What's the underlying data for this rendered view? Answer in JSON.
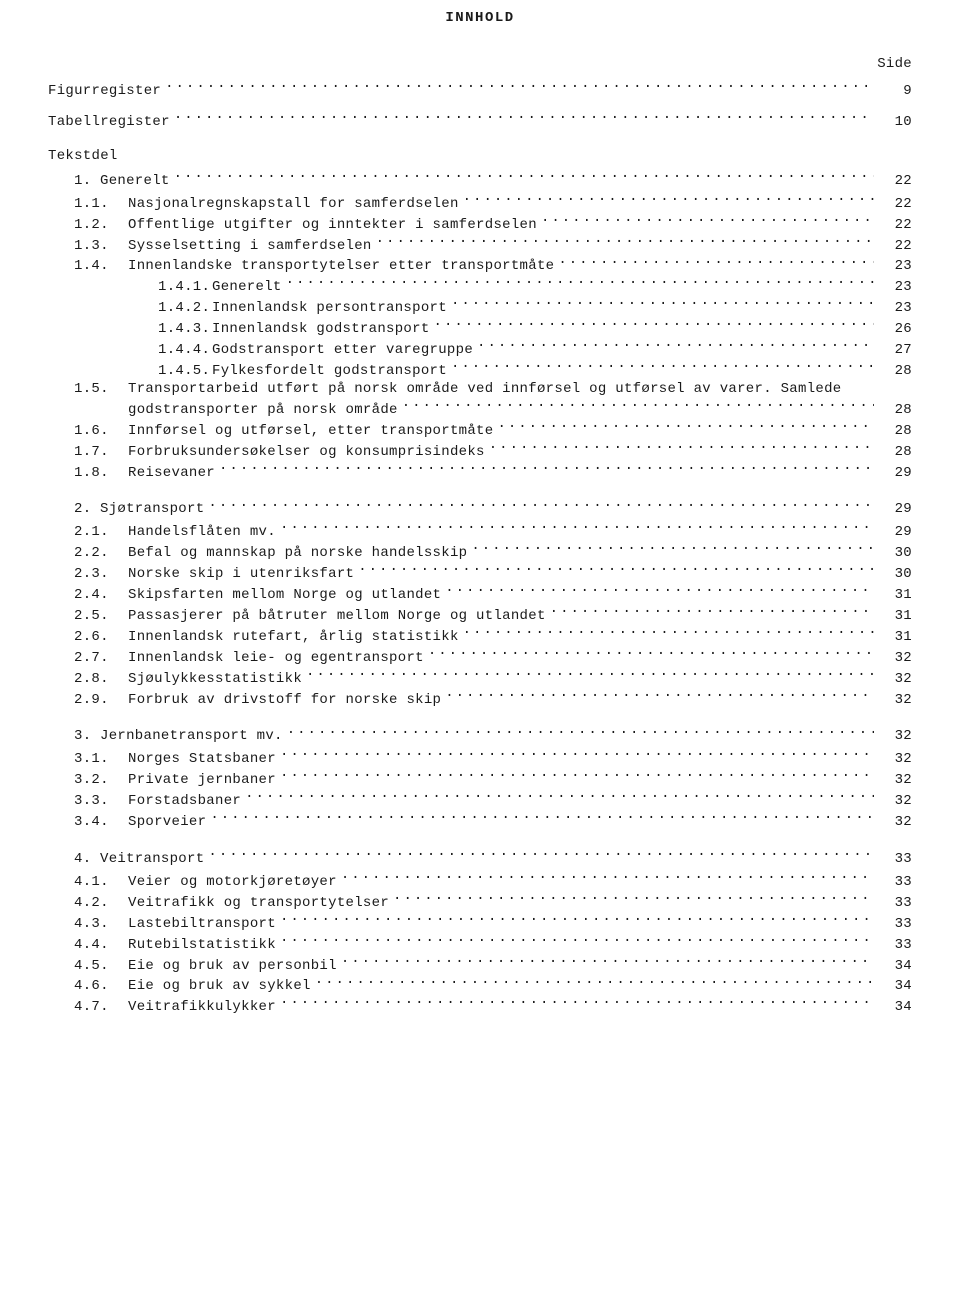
{
  "title": "INNHOLD",
  "side_label": "Side",
  "tekstdel_label": "Tekstdel",
  "registers": [
    {
      "label": "Figurregister",
      "page": "9"
    },
    {
      "label": "Tabellregister",
      "page": "10"
    }
  ],
  "chapters": [
    {
      "num": "1.",
      "label": "Generelt",
      "page": "22",
      "items": [
        {
          "num": "1.1.",
          "label": "Nasjonalregnskapstall for samferdselen",
          "page": "22"
        },
        {
          "num": "1.2.",
          "label": "Offentlige utgifter og inntekter i samferdselen",
          "page": "22"
        },
        {
          "num": "1.3.",
          "label": "Sysselsetting i samferdselen",
          "page": "22"
        },
        {
          "num": "1.4.",
          "label": "Innenlandske transportytelser etter transportmåte",
          "page": "23",
          "sub": [
            {
              "num": "1.4.1.",
              "label": "Generelt",
              "page": "23"
            },
            {
              "num": "1.4.2.",
              "label": "Innenlandsk persontransport",
              "page": "23"
            },
            {
              "num": "1.4.3.",
              "label": "Innenlandsk godstransport",
              "page": "26"
            },
            {
              "num": "1.4.4.",
              "label": "Godstransport etter varegruppe",
              "page": "27"
            },
            {
              "num": "1.4.5.",
              "label": "Fylkesfordelt godstransport",
              "page": "28"
            }
          ]
        },
        {
          "num": "1.5.",
          "label": "Transportarbeid utført på norsk område ved innførsel og utførsel av varer.  Samlede godstransporter på norsk område",
          "page": "28",
          "wrap": true
        },
        {
          "num": "1.6.",
          "label": "Innførsel og utførsel, etter transportmåte",
          "page": "28"
        },
        {
          "num": "1.7.",
          "label": "Forbruksundersøkelser og konsumprisindeks",
          "page": "28"
        },
        {
          "num": "1.8.",
          "label": "Reisevaner",
          "page": "29"
        }
      ]
    },
    {
      "num": "2.",
      "label": "Sjøtransport",
      "page": "29",
      "items": [
        {
          "num": "2.1.",
          "label": "Handelsflåten mv.",
          "page": "29"
        },
        {
          "num": "2.2.",
          "label": "Befal og mannskap på norske handelsskip",
          "page": "30"
        },
        {
          "num": "2.3.",
          "label": "Norske skip i utenriksfart",
          "page": "30"
        },
        {
          "num": "2.4.",
          "label": "Skipsfarten mellom Norge og utlandet",
          "page": "31"
        },
        {
          "num": "2.5.",
          "label": "Passasjerer på båtruter mellom Norge og utlandet",
          "page": "31"
        },
        {
          "num": "2.6.",
          "label": "Innenlandsk rutefart, årlig statistikk",
          "page": "31"
        },
        {
          "num": "2.7.",
          "label": "Innenlandsk leie- og egentransport",
          "page": "32"
        },
        {
          "num": "2.8.",
          "label": "Sjøulykkesstatistikk",
          "page": "32"
        },
        {
          "num": "2.9.",
          "label": "Forbruk av drivstoff for norske skip",
          "page": "32"
        }
      ]
    },
    {
      "num": "3.",
      "label": "Jernbanetransport mv.",
      "page": "32",
      "items": [
        {
          "num": "3.1.",
          "label": "Norges Statsbaner",
          "page": "32"
        },
        {
          "num": "3.2.",
          "label": "Private jernbaner",
          "page": "32"
        },
        {
          "num": "3.3.",
          "label": "Forstadsbaner",
          "page": "32"
        },
        {
          "num": "3.4.",
          "label": "Sporveier",
          "page": "32"
        }
      ]
    },
    {
      "num": "4.",
      "label": "Veitransport",
      "page": "33",
      "items": [
        {
          "num": "4.1.",
          "label": "Veier og motorkjøretøyer",
          "page": "33"
        },
        {
          "num": "4.2.",
          "label": "Veitrafikk og transportytelser",
          "page": "33"
        },
        {
          "num": "4.3.",
          "label": "Lastebiltransport",
          "page": "33"
        },
        {
          "num": "4.4.",
          "label": "Rutebilstatistikk",
          "page": "33"
        },
        {
          "num": "4.5.",
          "label": "Eie og bruk av personbil",
          "page": "34"
        },
        {
          "num": "4.6.",
          "label": "Eie og bruk av sykkel",
          "page": "34"
        },
        {
          "num": "4.7.",
          "label": "Veitrafikkulykker",
          "page": "34"
        }
      ]
    }
  ]
}
